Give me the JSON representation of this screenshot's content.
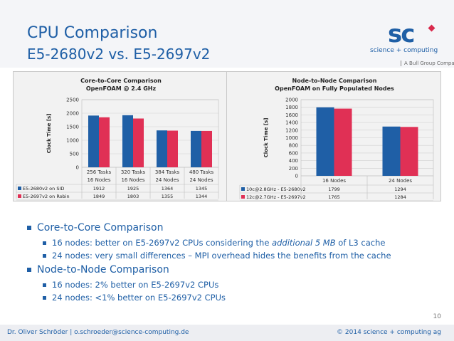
{
  "slide": {
    "title_line1": "CPU Comparison",
    "title_line2": "E5-2680v2 vs. E5-2697v2",
    "page_number": "10"
  },
  "logo": {
    "mark": "sc",
    "subtitle": "science + computing",
    "group": "A Bull Group Company"
  },
  "colors": {
    "series_a": "#1f5fa6",
    "series_b": "#e03055",
    "title": "#1f5fa6",
    "panel_bg": "#f2f2f2"
  },
  "chart_data": [
    {
      "type": "bar",
      "title": "Core-to-Core Comparison",
      "subtitle": "OpenFOAM @ 2.4 GHz",
      "ylabel": "Clock Time [s]",
      "xlabel": "",
      "ylim": [
        0,
        2500
      ],
      "yticks": [
        0,
        500,
        1000,
        1500,
        2000,
        2500
      ],
      "categories": [
        [
          "256 Tasks",
          "16 Nodes"
        ],
        [
          "320 Tasks",
          "16 Nodes"
        ],
        [
          "384 Tasks",
          "24 Nodes"
        ],
        [
          "480 Tasks",
          "24 Nodes"
        ]
      ],
      "series": [
        {
          "name": "E5-2680v2 on SID",
          "values": [
            1912,
            1925,
            1364,
            1345
          ]
        },
        {
          "name": "E5-2697v2 on Robin",
          "values": [
            1849,
            1803,
            1355,
            1344
          ]
        }
      ],
      "grid": true,
      "legend": "data table"
    },
    {
      "type": "bar",
      "title": "Node-to-Node Comparison",
      "subtitle": "OpenFOAM on Fully Populated Nodes",
      "ylabel": "Clock Time [s]",
      "xlabel": "",
      "ylim": [
        0,
        2000
      ],
      "yticks": [
        0,
        200,
        400,
        600,
        800,
        1000,
        1200,
        1400,
        1600,
        1800,
        2000
      ],
      "categories": [
        [
          "16 Nodes"
        ],
        [
          "24 Nodes"
        ]
      ],
      "series": [
        {
          "name": "10c@2.8GHz - E5-2680v2",
          "values": [
            1799,
            1294
          ]
        },
        {
          "name": "12c@2.7GHz - E5-2697v2",
          "values": [
            1765,
            1284
          ]
        }
      ],
      "grid": true,
      "legend": "data table"
    }
  ],
  "bullets": [
    {
      "level": 1,
      "parts": [
        {
          "text": "Core-to-Core Comparison"
        }
      ]
    },
    {
      "level": 2,
      "parts": [
        {
          "text": "16 nodes: better on E5-2697v2 CPUs considering the "
        },
        {
          "text": "additional 5 MB",
          "italic": true
        },
        {
          "text": " of L3 cache"
        }
      ]
    },
    {
      "level": 2,
      "parts": [
        {
          "text": "24 nodes: very small differences – MPI overhead hides the benefits from the cache"
        }
      ]
    },
    {
      "level": 1,
      "parts": [
        {
          "text": "Node-to-Node Comparison"
        }
      ]
    },
    {
      "level": 2,
      "parts": [
        {
          "text": "16 nodes: 2% better on E5-2697v2 CPUs"
        }
      ]
    },
    {
      "level": 2,
      "parts": [
        {
          "text": "24 nodes: <1% better on E5-2697v2 CPUs"
        }
      ]
    }
  ],
  "footer": {
    "left": "Dr. Oliver Schröder  |  o.schroeder@science-computing.de",
    "right": "© 2014 science + computing ag"
  }
}
